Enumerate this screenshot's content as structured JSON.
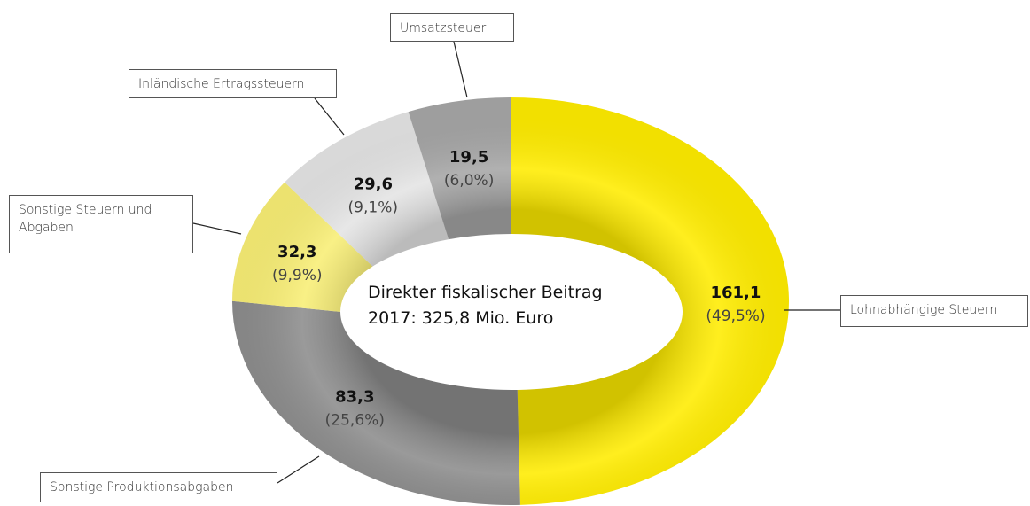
{
  "chart_data": {
    "type": "donut",
    "center_label": "Direkter fiskalischer Beitrag 2017: 325,8 Mio. Euro",
    "categories": [
      "Lohnabhängige Steuern",
      "Sonstige Produktionsabgaben",
      "Sonstige Steuern und Abgaben",
      "Inländische Ertragssteuern",
      "Umsatzsteuer"
    ],
    "values": [
      161.1,
      83.3,
      32.3,
      29.6,
      19.5
    ],
    "value_labels": [
      "161,1",
      "83,3",
      "32,3",
      "29,6",
      "19,5"
    ],
    "percentages": [
      49.5,
      25.6,
      9.9,
      9.1,
      6.0
    ],
    "percentage_labels": [
      "(49,5%)",
      "(25,6%)",
      "(9,9%)",
      "(9,1%)",
      "(6,0%)"
    ],
    "colors": [
      "#ffec00",
      "#8c8c8c",
      "#f8ee75",
      "#e4e4e4",
      "#a6a6a6"
    ]
  }
}
